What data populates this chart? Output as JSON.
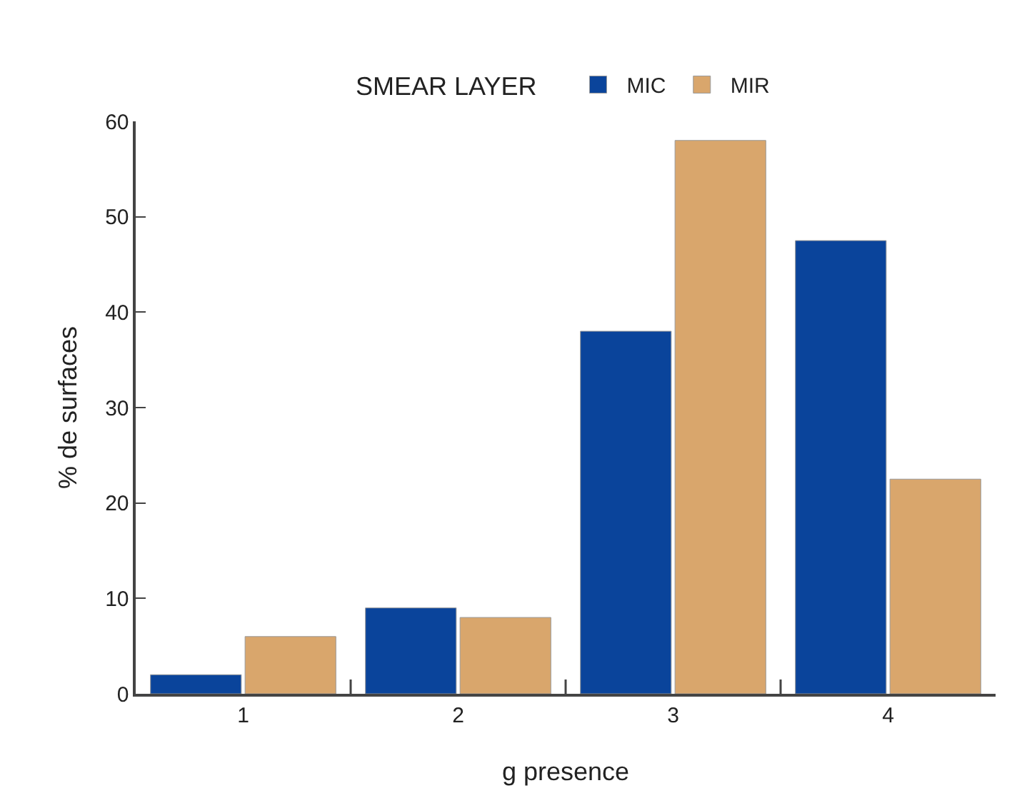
{
  "chart_data": {
    "type": "bar",
    "xlabel": "g presence",
    "ylabel": "% de surfaces",
    "legend_title": "SMEAR LAYER",
    "categories": [
      "1",
      "2",
      "3",
      "4"
    ],
    "series": [
      {
        "name": "MIC",
        "color": "#0a449b",
        "values": [
          2,
          9,
          38,
          47.5
        ]
      },
      {
        "name": "MIR",
        "color": "#d9a66c",
        "values": [
          6,
          8,
          58,
          22.5
        ]
      }
    ],
    "ylim": [
      0,
      60
    ],
    "yticks": [
      0,
      10,
      20,
      30,
      40,
      50,
      60
    ],
    "grid": false,
    "legend": "top"
  }
}
